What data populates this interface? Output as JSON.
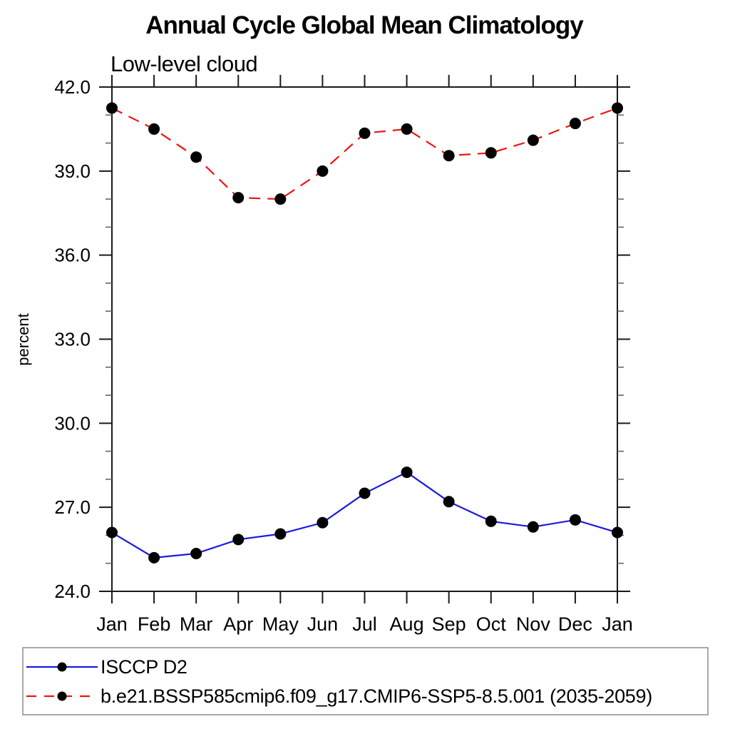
{
  "chart_data": {
    "type": "line",
    "title": "Annual Cycle Global Mean Climatology",
    "subtitle": "Low-level cloud",
    "ylabel": "percent",
    "xlabel": "",
    "categories": [
      "Jan",
      "Feb",
      "Mar",
      "Apr",
      "May",
      "Jun",
      "Jul",
      "Aug",
      "Sep",
      "Oct",
      "Nov",
      "Dec",
      "Jan"
    ],
    "ylim": [
      24.0,
      42.0
    ],
    "ytick_step": 3.0,
    "yminor_step": 1.0,
    "ytick_labels": [
      "24.0",
      "27.0",
      "30.0",
      "33.0",
      "36.0",
      "39.0",
      "42.0"
    ],
    "grid": false,
    "legend_position": "bottom",
    "marker": "filled-circle",
    "marker_color": "#000000",
    "axis_color": "#1a1a1a",
    "minor_tick_color": "#666666",
    "legend_border_color": "#8c8c8c",
    "series": [
      {
        "name": "ISCCP D2",
        "color": "#1a1ae0",
        "line_style": "solid",
        "values": [
          26.1,
          25.2,
          25.35,
          25.85,
          26.05,
          26.45,
          27.5,
          28.25,
          27.2,
          26.5,
          26.3,
          26.55,
          26.1
        ]
      },
      {
        "name": "b.e21.BSSP585cmip6.f09_g17.CMIP6-SSP5-8.5.001 (2035-2059)",
        "color": "#f01414",
        "line_style": "dashed",
        "values": [
          41.25,
          40.5,
          39.5,
          38.05,
          38.0,
          39.0,
          40.35,
          40.5,
          39.55,
          39.65,
          40.1,
          40.7,
          41.25
        ]
      }
    ]
  }
}
